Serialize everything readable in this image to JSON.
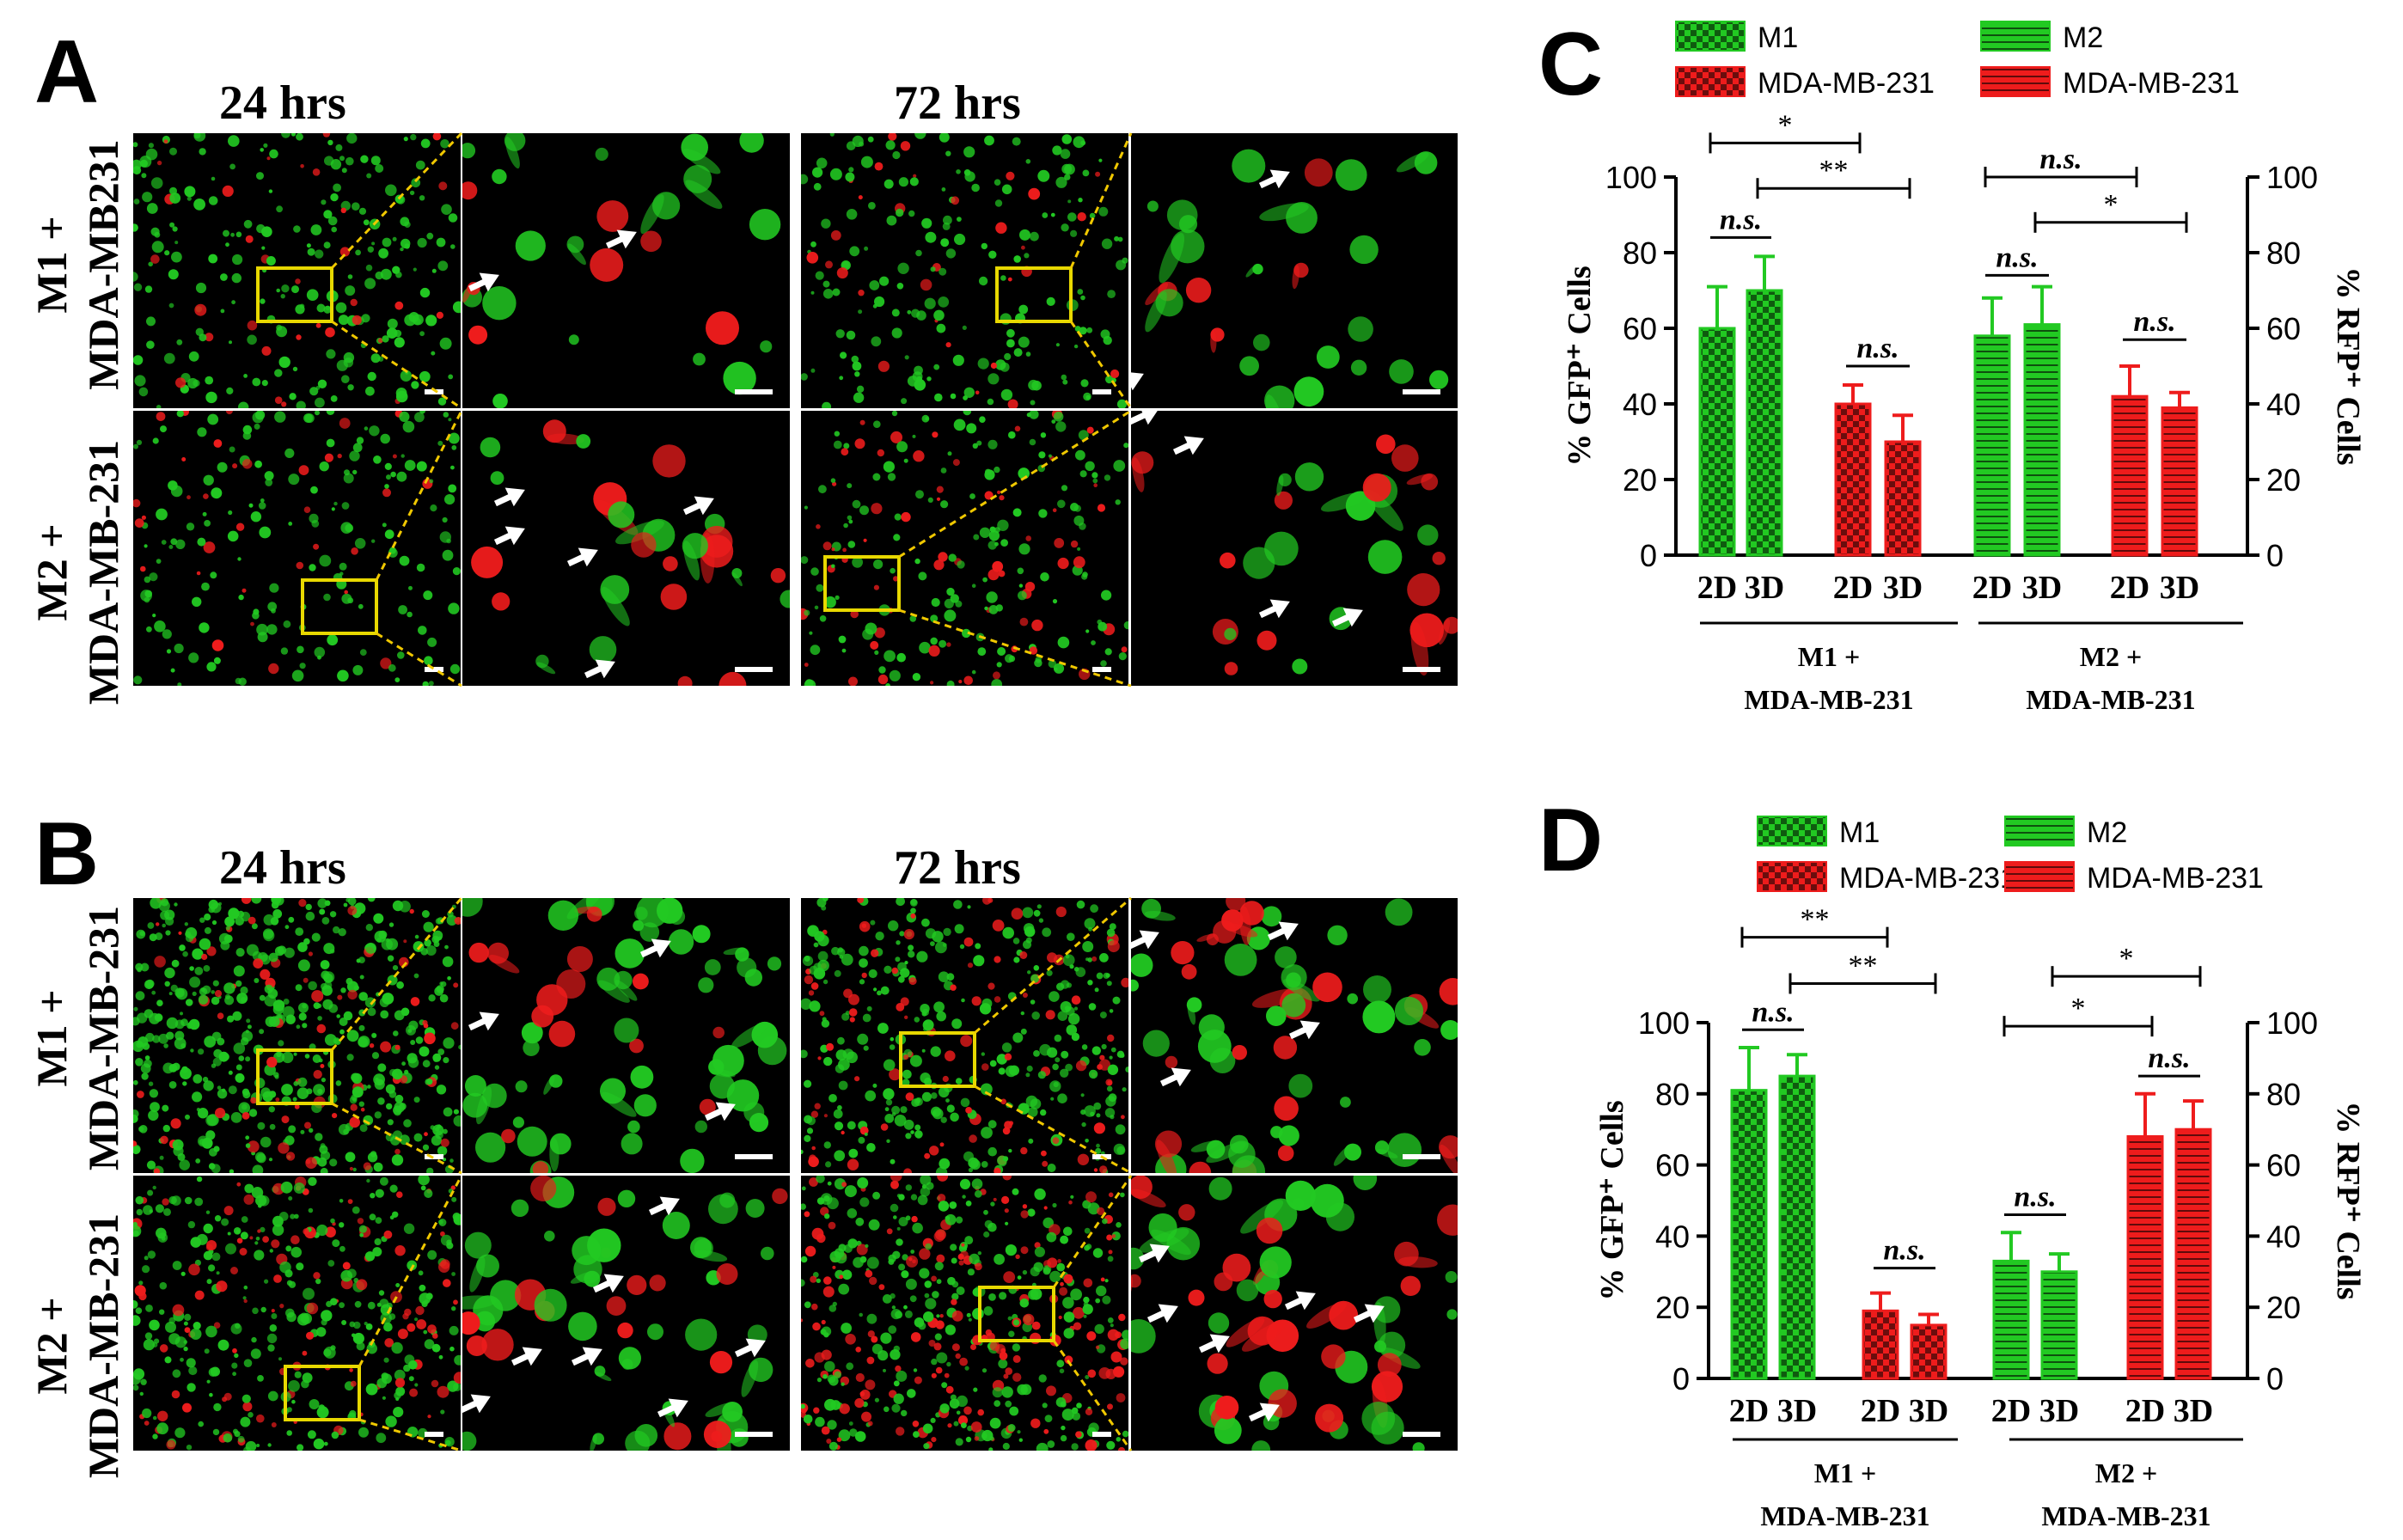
{
  "panels": {
    "A": {
      "letter": "A",
      "times": [
        "24 hrs",
        "72 hrs"
      ],
      "rows": [
        [
          "M1 +",
          "MDA-MB231"
        ],
        [
          "M2 +",
          "MDA-MB-231"
        ]
      ]
    },
    "B": {
      "letter": "B",
      "times": [
        "24 hrs",
        "72 hrs"
      ],
      "rows": [
        [
          "M1 +",
          "MDA-MB-231"
        ],
        [
          "M2 +",
          "MDA-MB-231"
        ]
      ]
    }
  },
  "colors": {
    "green": "#22c922",
    "red": "#ee1c1c",
    "zoom_box": "#e8d800",
    "zoom_line": "#f0c800",
    "arrow": "#ffffff",
    "scale_bar": "#ffffff"
  },
  "chart_data": [
    {
      "panel": "C",
      "type": "bar",
      "legend": [
        {
          "label": "M1",
          "pattern": "checker",
          "color": "#22c922"
        },
        {
          "label": "MDA-MB-231",
          "pattern": "checker",
          "color": "#ee1c1c"
        },
        {
          "label": "M2",
          "pattern": "hlines",
          "color": "#22c922"
        },
        {
          "label": "MDA-MB-231",
          "pattern": "hlines",
          "color": "#ee1c1c"
        }
      ],
      "ylabel_left": "% GFP⁺ Cells",
      "ylabel_right": "% RFP⁺ Cells",
      "ylim": [
        0,
        100
      ],
      "yticks": [
        0,
        20,
        40,
        60,
        80,
        100
      ],
      "bars": [
        {
          "category": "2D",
          "value": 60,
          "error": 11,
          "pattern": "checker",
          "color": "#22c922"
        },
        {
          "category": "3D",
          "value": 70,
          "error": 9,
          "pattern": "checker",
          "color": "#22c922"
        },
        {
          "category": "2D",
          "value": 40,
          "error": 5,
          "pattern": "checker",
          "color": "#ee1c1c"
        },
        {
          "category": "3D",
          "value": 30,
          "error": 7,
          "pattern": "checker",
          "color": "#ee1c1c"
        },
        {
          "category": "2D",
          "value": 58,
          "error": 10,
          "pattern": "hlines",
          "color": "#22c922"
        },
        {
          "category": "3D",
          "value": 61,
          "error": 10,
          "pattern": "hlines",
          "color": "#22c922"
        },
        {
          "category": "2D",
          "value": 42,
          "error": 8,
          "pattern": "hlines",
          "color": "#ee1c1c"
        },
        {
          "category": "3D",
          "value": 39,
          "error": 4,
          "pattern": "hlines",
          "color": "#ee1c1c"
        }
      ],
      "groups": [
        {
          "line1": "M1 +",
          "line2": "MDA-MB-231",
          "bars": [
            0,
            3
          ]
        },
        {
          "line1": "M2 +",
          "line2": "MDA-MB-231",
          "bars": [
            4,
            7
          ]
        }
      ],
      "significance": [
        {
          "from": 0,
          "to": 1,
          "label": "n.s.",
          "italic": true,
          "level": 84
        },
        {
          "from": 2,
          "to": 3,
          "label": "n.s.",
          "italic": true,
          "level": 50
        },
        {
          "from": 4,
          "to": 5,
          "label": "n.s.",
          "italic": true,
          "level": 74
        },
        {
          "from": 6,
          "to": 7,
          "label": "n.s.",
          "italic": true,
          "level": 57
        },
        {
          "from": 0,
          "to": 2,
          "label": "*",
          "italic": false,
          "level": 109
        },
        {
          "from": 1,
          "to": 3,
          "label": "**",
          "italic": false,
          "level": 97
        },
        {
          "from": 4,
          "to": 6,
          "label": "n.s.",
          "italic": true,
          "level": 100
        },
        {
          "from": 5,
          "to": 7,
          "label": "*",
          "italic": false,
          "level": 88
        }
      ]
    },
    {
      "panel": "D",
      "type": "bar",
      "legend": [
        {
          "label": "M1",
          "pattern": "checker",
          "color": "#22c922"
        },
        {
          "label": "MDA-MB-231",
          "pattern": "checker",
          "color": "#ee1c1c"
        },
        {
          "label": "M2",
          "pattern": "hlines",
          "color": "#22c922"
        },
        {
          "label": "MDA-MB-231",
          "pattern": "hlines",
          "color": "#ee1c1c"
        }
      ],
      "ylabel_left": "% GFP⁺ Cells",
      "ylabel_right": "% RFP⁺ Cells",
      "ylim": [
        0,
        100
      ],
      "yticks": [
        0,
        20,
        40,
        60,
        80,
        100
      ],
      "bars": [
        {
          "category": "2D",
          "value": 81,
          "error": 12,
          "pattern": "checker",
          "color": "#22c922"
        },
        {
          "category": "3D",
          "value": 85,
          "error": 6,
          "pattern": "checker",
          "color": "#22c922"
        },
        {
          "category": "2D",
          "value": 19,
          "error": 5,
          "pattern": "checker",
          "color": "#ee1c1c"
        },
        {
          "category": "3D",
          "value": 15,
          "error": 3,
          "pattern": "checker",
          "color": "#ee1c1c"
        },
        {
          "category": "2D",
          "value": 33,
          "error": 8,
          "pattern": "hlines",
          "color": "#22c922"
        },
        {
          "category": "3D",
          "value": 30,
          "error": 5,
          "pattern": "hlines",
          "color": "#22c922"
        },
        {
          "category": "2D",
          "value": 68,
          "error": 12,
          "pattern": "hlines",
          "color": "#ee1c1c"
        },
        {
          "category": "3D",
          "value": 70,
          "error": 8,
          "pattern": "hlines",
          "color": "#ee1c1c"
        }
      ],
      "groups": [
        {
          "line1": "M1 +",
          "line2": "MDA-MB-231",
          "bars": [
            0,
            3
          ]
        },
        {
          "line1": "M2 +",
          "line2": "MDA-MB-231",
          "bars": [
            4,
            7
          ]
        }
      ],
      "significance": [
        {
          "from": 0,
          "to": 1,
          "label": "n.s.",
          "italic": true,
          "level": 98
        },
        {
          "from": 2,
          "to": 3,
          "label": "n.s.",
          "italic": true,
          "level": 31
        },
        {
          "from": 4,
          "to": 5,
          "label": "n.s.",
          "italic": true,
          "level": 46
        },
        {
          "from": 6,
          "to": 7,
          "label": "n.s.",
          "italic": true,
          "level": 85
        },
        {
          "from": 0,
          "to": 2,
          "label": "**",
          "italic": false,
          "level": 124
        },
        {
          "from": 1,
          "to": 3,
          "label": "**",
          "italic": false,
          "level": 111
        },
        {
          "from": 4,
          "to": 6,
          "label": "*",
          "italic": false,
          "level": 99
        },
        {
          "from": 5,
          "to": 7,
          "label": "*",
          "italic": false,
          "level": 113
        }
      ]
    }
  ]
}
